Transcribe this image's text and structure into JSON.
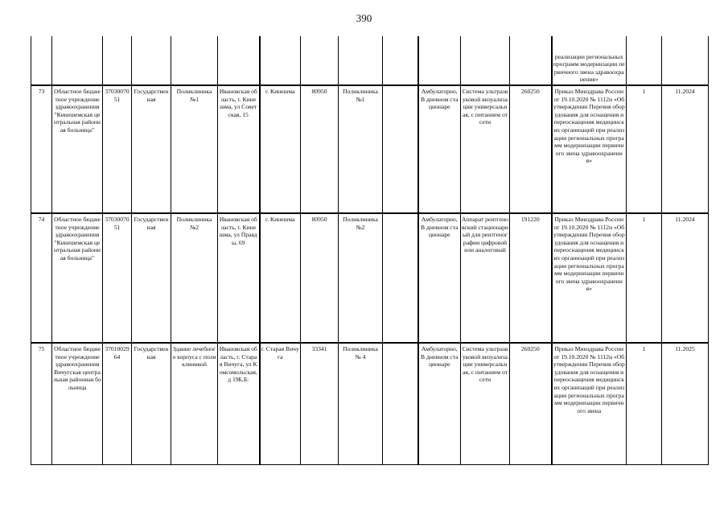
{
  "page_number": "390",
  "continuation": {
    "basis": "реализации региональных программ модернизации первичного звена здравоохранения»"
  },
  "rows": [
    {
      "num": "73",
      "organization": "Областное бюджетное учреждение здравоохранения \"Кинешемская центральная районная больница\"",
      "code": "3703007051",
      "ownership": "Государственная",
      "building": "Поликлиника №1",
      "address": "Ивановская область, г. Кинешма, ул Советская, 15",
      "locality": "г. Кинешма",
      "oktmo": "80950",
      "subdivision": "Поликлиника №1",
      "empty": "",
      "conditions": "Амбулаторно, В дневном стационаре",
      "equipment": "Система ультразвуковой визуализации универсальная, с питанием от сети",
      "price": "260250",
      "basis": "Приказ Минздрава России от 19.10.2020 № 1112н «Об утверждении Перечня оборудования для оснащения и переоснащения медицинских организаций при реализации региональных программ модернизации первичного звена здравоохранения»",
      "quantity": "1",
      "date": "11.2024"
    },
    {
      "num": "74",
      "organization": "Областное бюджетное учреждение здравоохранения \"Кинешемская центральная районная больница\"",
      "code": "3703007051",
      "ownership": "Государственная",
      "building": "Поликлиника №2",
      "address": "Ивановская область, г. Кинешма, ул Правды, 69",
      "locality": "г. Кинешма",
      "oktmo": "80950",
      "subdivision": "Поликлиника №2",
      "empty": "",
      "conditions": "Амбулаторно, В дневном стационаре",
      "equipment": "Аппарат рентгеновский стационарный для рентгенографии цифровой или аналоговый",
      "price": "191220",
      "basis": "Приказ Минздрава России от 19.10.2020 № 1112н «Об утверждении Перечня оборудования для оснащения и переоснащения медицинских организаций при реализации региональных программ модернизации первичного звена здравоохранения»",
      "quantity": "1",
      "date": "11.2024"
    },
    {
      "num": "75",
      "organization": "Областное бюджетное учреждение здравоохранения Вичугская центральная районная больница",
      "code": "3701002964",
      "ownership": "Государственная",
      "building": "Здание лечебного корпуса с поликлиникой",
      "address": "Ивановская область, г. Старая Вичуга, ул Комсомольская, д 19Б,Б:",
      "locality": "г. Старая Вичуга",
      "oktmo": "33341",
      "subdivision": "Поликлиника № 4",
      "empty": "",
      "conditions": "Амбулаторно, В дневном стационаре",
      "equipment": "Система ультразвуковой визуализации универсальная, с питанием от сети",
      "price": "260250",
      "basis": "Приказ Минздрава России от 19.10.2020 № 1112н «Об утверждении Перечня оборудования для оснащения и переоснащения медицинских организаций при реализации региональных программ модернизации первичного звена",
      "quantity": "1",
      "date": "11.2025"
    }
  ]
}
